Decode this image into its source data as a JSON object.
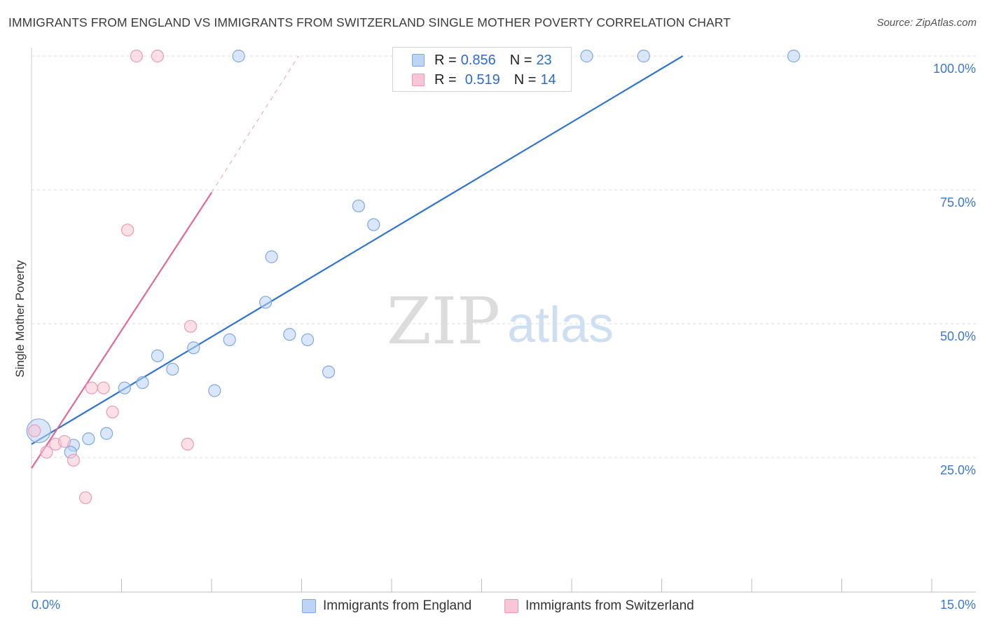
{
  "header": {
    "title": "IMMIGRANTS FROM ENGLAND VS IMMIGRANTS FROM SWITZERLAND SINGLE MOTHER POVERTY CORRELATION CHART",
    "source": "Source: ZipAtlas.com"
  },
  "watermark": {
    "zip": "ZIP",
    "atlas": "atlas"
  },
  "legend": {
    "england": {
      "r_label": "R =",
      "r_value": "0.856",
      "n_label": "N =",
      "n_value": "23"
    },
    "switzerland": {
      "r_label": "R =",
      "r_value": "0.519",
      "n_label": "N =",
      "n_value": "14"
    }
  },
  "bottom_legend": {
    "england": "Immigrants from England",
    "switzerland": "Immigrants from Switzerland"
  },
  "colors": {
    "england_fill": "#bcd4f5",
    "england_stroke": "#7fa8e0",
    "england_line": "#2f74d0",
    "switzerland_fill": "#f8c6d6",
    "switzerland_stroke": "#ec9bb5",
    "switzerland_line": "#e06a95",
    "axis_text": "#3a78d4",
    "grid": "#dddddd"
  },
  "chart_data": {
    "type": "scatter",
    "title": "IMMIGRANTS FROM ENGLAND VS IMMIGRANTS FROM SWITZERLAND SINGLE MOTHER POVERTY CORRELATION CHART",
    "xlabel": "",
    "ylabel": "Single Mother Poverty",
    "xlim": [
      0,
      15
    ],
    "ylim": [
      0,
      100
    ],
    "x_tick_labels": [
      "0.0%",
      "15.0%"
    ],
    "y_ticks": [
      25,
      50,
      75,
      100
    ],
    "y_tick_labels": [
      "25.0%",
      "50.0%",
      "75.0%",
      "100.0%"
    ],
    "series": [
      {
        "name": "Immigrants from England",
        "R": 0.856,
        "N": 23,
        "points": [
          {
            "x": 0.12,
            "y": 30.0,
            "size": "large"
          },
          {
            "x": 0.7,
            "y": 27.3
          },
          {
            "x": 0.95,
            "y": 28.5
          },
          {
            "x": 0.65,
            "y": 26.0
          },
          {
            "x": 1.25,
            "y": 29.5
          },
          {
            "x": 1.55,
            "y": 38.0
          },
          {
            "x": 1.85,
            "y": 39.0
          },
          {
            "x": 2.1,
            "y": 44.0
          },
          {
            "x": 2.35,
            "y": 41.5
          },
          {
            "x": 2.7,
            "y": 45.5
          },
          {
            "x": 3.05,
            "y": 37.5
          },
          {
            "x": 3.3,
            "y": 47.0
          },
          {
            "x": 3.9,
            "y": 54.0
          },
          {
            "x": 4.0,
            "y": 62.5
          },
          {
            "x": 4.3,
            "y": 48.0
          },
          {
            "x": 4.6,
            "y": 47.0
          },
          {
            "x": 4.95,
            "y": 41.0
          },
          {
            "x": 5.45,
            "y": 72.0
          },
          {
            "x": 5.7,
            "y": 68.5
          },
          {
            "x": 3.45,
            "y": 100.0
          },
          {
            "x": 9.25,
            "y": 100.0
          },
          {
            "x": 10.2,
            "y": 100.0
          },
          {
            "x": 12.7,
            "y": 100.0
          }
        ],
        "trendline": {
          "x": [
            0.0,
            10.85
          ],
          "y": [
            27.5,
            100.0
          ]
        }
      },
      {
        "name": "Immigrants from Switzerland",
        "R": 0.519,
        "N": 14,
        "points": [
          {
            "x": 0.05,
            "y": 30.0
          },
          {
            "x": 0.25,
            "y": 26.0
          },
          {
            "x": 0.4,
            "y": 27.5
          },
          {
            "x": 0.55,
            "y": 28.0
          },
          {
            "x": 0.7,
            "y": 24.5
          },
          {
            "x": 0.9,
            "y": 17.5
          },
          {
            "x": 1.0,
            "y": 38.0
          },
          {
            "x": 1.2,
            "y": 38.0
          },
          {
            "x": 1.35,
            "y": 33.5
          },
          {
            "x": 1.6,
            "y": 67.5
          },
          {
            "x": 1.75,
            "y": 100.0
          },
          {
            "x": 2.1,
            "y": 100.0
          },
          {
            "x": 2.6,
            "y": 27.5
          },
          {
            "x": 2.65,
            "y": 49.5
          }
        ],
        "trendline": {
          "x": [
            0.0,
            3.0
          ],
          "y": [
            23.0,
            74.5
          ]
        },
        "trendline_extension": {
          "x": [
            3.0,
            4.45
          ],
          "y": [
            74.5,
            100.0
          ]
        }
      }
    ]
  }
}
